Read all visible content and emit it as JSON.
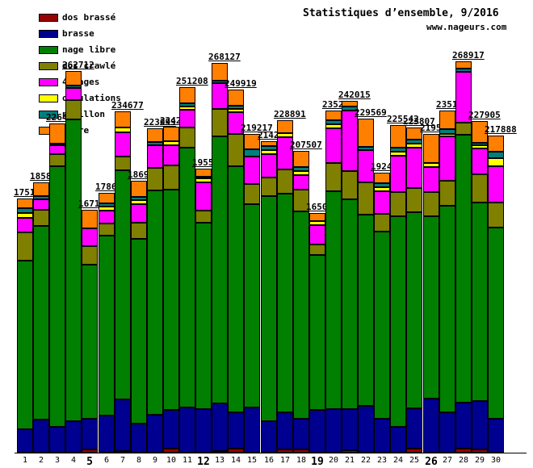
{
  "header": {
    "title": "Statistiques d’ensemble, 9/2016",
    "site": "www.nageurs.com"
  },
  "chart_data": {
    "type": "bar",
    "stacked": true,
    "title": "Statistiques d’ensemble, 9/2016",
    "source": "www.nageurs.com",
    "unit": "m",
    "legend_position": "top-left",
    "grid": false,
    "ylim": [
      0,
      270000
    ],
    "categories": [
      1,
      2,
      3,
      4,
      5,
      6,
      7,
      8,
      9,
      10,
      11,
      12,
      13,
      14,
      15,
      16,
      17,
      18,
      19,
      20,
      21,
      22,
      23,
      24,
      25,
      26,
      27,
      28,
      29,
      30
    ],
    "bold_categories": [
      5,
      12,
      19,
      26
    ],
    "bar_labels": [
      "1751",
      "1858",
      "2264",
      "262712",
      "1671",
      "1786",
      "234677",
      "1869",
      "223099",
      "224224",
      "251208",
      "1955",
      "268127",
      "249919",
      "219217",
      "2142",
      "228891",
      "207507",
      "1650",
      "2352",
      "242015",
      "229569",
      "1924",
      "225542",
      "223807",
      "2195",
      "2351",
      "268917",
      "227905",
      "217888"
    ],
    "series": [
      {
        "key": "dos-brasse",
        "name": "dos brassé",
        "color": "#990000",
        "values": [
          0,
          0,
          0,
          0,
          2200,
          0,
          1100,
          0,
          0,
          2800,
          0,
          0,
          1100,
          2800,
          0,
          0,
          2200,
          2200,
          0,
          0,
          1700,
          0,
          0,
          0,
          2800,
          0,
          0,
          2800,
          2200,
          0
        ]
      },
      {
        "key": "brasse",
        "name": "brasse",
        "color": "#000090",
        "values": [
          16100,
          22800,
          17800,
          21700,
          21100,
          25500,
          35500,
          20000,
          26100,
          26600,
          31100,
          30000,
          32800,
          25000,
          31100,
          21700,
          25500,
          21100,
          29400,
          30000,
          28300,
          32200,
          23300,
          17800,
          27800,
          37200,
          27800,
          31600,
          33300,
          23300
        ]
      },
      {
        "key": "nage-libre",
        "name": "nage libre",
        "color": "#007f00",
        "values": [
          115800,
          133100,
          179200,
          207712,
          106000,
          123700,
          157577,
          126900,
          154399,
          151424,
          178508,
          128300,
          183627,
          169419,
          139817,
          154700,
          150591,
          142507,
          106700,
          149600,
          144315,
          131369,
          128600,
          144942,
          134807,
          125600,
          142300,
          184517,
          136805,
          131788
        ]
      },
      {
        "key": "dos-crawle",
        "name": "dos crawlé",
        "color": "#7f7f00",
        "values": [
          19400,
          11100,
          8300,
          13300,
          12800,
          8300,
          9400,
          11100,
          15500,
          16700,
          13900,
          8300,
          18900,
          22200,
          13900,
          12800,
          16700,
          15000,
          7200,
          19400,
          19400,
          22200,
          12200,
          16700,
          16700,
          16700,
          16700,
          8300,
          19400,
          16700
        ]
      },
      {
        "key": "quatre-nages",
        "name": "4 nages",
        "color": "#ff00ff",
        "values": [
          10000,
          7200,
          6100,
          8300,
          12200,
          8900,
          16700,
          12800,
          15500,
          13900,
          12200,
          19400,
          17800,
          15000,
          18900,
          16100,
          22200,
          10000,
          13300,
          23900,
          41600,
          22200,
          15500,
          25000,
          27800,
          16700,
          30500,
          35000,
          17800,
          25000
        ]
      },
      {
        "key": "ondulations",
        "name": "ondulations",
        "color": "#ffff00",
        "values": [
          3300,
          0,
          1100,
          0,
          0,
          2800,
          3300,
          2800,
          0,
          2800,
          2200,
          2800,
          0,
          2200,
          0,
          2800,
          2800,
          2800,
          2800,
          2800,
          0,
          0,
          2800,
          2800,
          2800,
          2800,
          2200,
          0,
          1700,
          5600
        ]
      },
      {
        "key": "papillon",
        "name": "papillon",
        "color": "#007f7f",
        "values": [
          3300,
          2200,
          0,
          1700,
          0,
          2200,
          0,
          2200,
          2200,
          0,
          2200,
          1100,
          1700,
          2200,
          5000,
          2800,
          0,
          2800,
          0,
          2800,
          2800,
          2200,
          2800,
          2800,
          2800,
          0,
          2800,
          1700,
          1700,
          4400
        ]
      },
      {
        "key": "autre",
        "name": "autre",
        "color": "#ff7f00",
        "values": [
          7200,
          9400,
          13900,
          10000,
          12800,
          7200,
          11100,
          11100,
          9400,
          10000,
          11100,
          5600,
          12200,
          11100,
          10500,
          3300,
          8900,
          11100,
          5600,
          6700,
          3900,
          19400,
          7200,
          15500,
          8300,
          20500,
          12800,
          5000,
          15000,
          11100
        ]
      }
    ]
  }
}
